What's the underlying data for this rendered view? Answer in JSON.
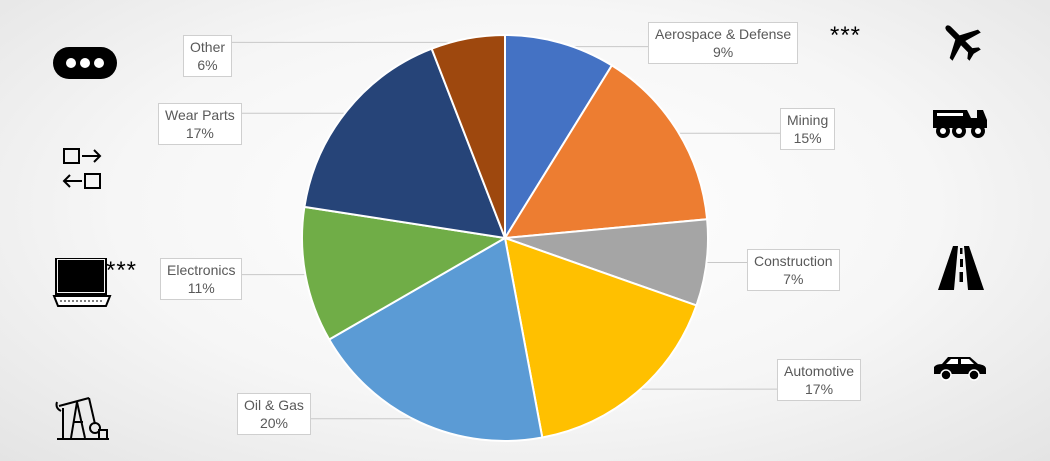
{
  "chart_data": {
    "type": "pie",
    "slices": [
      {
        "label": "Aerospace & Defense",
        "value": 9,
        "pct_label": "9%",
        "color": "#4472C4"
      },
      {
        "label": "Mining",
        "value": 15,
        "pct_label": "15%",
        "color": "#ED7D31"
      },
      {
        "label": "Construction",
        "value": 7,
        "pct_label": "7%",
        "color": "#A5A5A5"
      },
      {
        "label": "Automotive",
        "value": 17,
        "pct_label": "17%",
        "color": "#FFC000"
      },
      {
        "label": "Oil & Gas",
        "value": 20,
        "pct_label": "20%",
        "color": "#5B9BD5"
      },
      {
        "label": "Electronics",
        "value": 11,
        "pct_label": "11%",
        "color": "#70AD47"
      },
      {
        "label": "Wear Parts",
        "value": 17,
        "pct_label": "17%",
        "color": "#264478"
      },
      {
        "label": "Other",
        "value": 6,
        "pct_label": "6%",
        "color": "#9E480E"
      }
    ],
    "start_angle_deg": 0,
    "direction": "clockwise",
    "legend": "none"
  },
  "annotations": {
    "aerospace_marker": "***",
    "electronics_marker": "***"
  },
  "icons": {
    "left": [
      "more-icon",
      "swap-icon",
      "laptop-icon",
      "oil-pump-icon"
    ],
    "right": [
      "airplane-icon",
      "mining-truck-icon",
      "road-icon",
      "car-icon"
    ]
  }
}
